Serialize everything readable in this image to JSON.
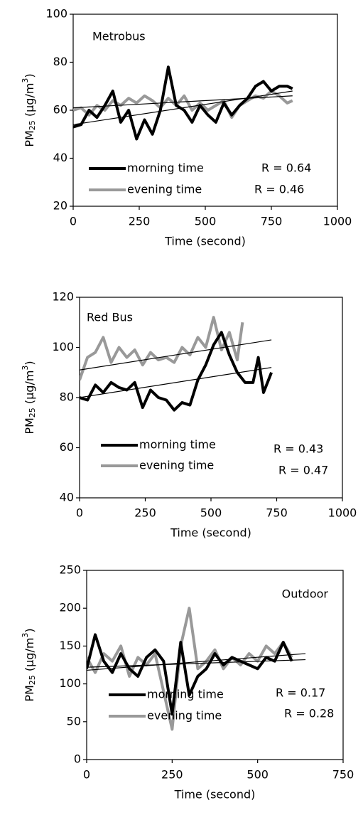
{
  "chart_data": [
    {
      "type": "line",
      "title": "Metrobus",
      "xlabel": "Time (second)",
      "ylabel_parts": [
        "PM",
        "25",
        " (µg/m",
        "3",
        ")"
      ],
      "xlim": [
        0,
        1000
      ],
      "ylim": [
        20,
        100
      ],
      "xticks": [
        0,
        250,
        500,
        750,
        1000
      ],
      "yticks": [
        20,
        40,
        60,
        80,
        100
      ],
      "series": [
        {
          "name": "morning time",
          "color": "#000000",
          "r_label": "R = 0.64",
          "x": [
            0,
            30,
            60,
            90,
            120,
            150,
            180,
            210,
            240,
            270,
            300,
            330,
            360,
            390,
            420,
            450,
            480,
            510,
            540,
            570,
            600,
            630,
            660,
            690,
            720,
            750,
            780,
            810,
            830
          ],
          "values": [
            53,
            54,
            60,
            57,
            62,
            68,
            55,
            60,
            48,
            56,
            50,
            60,
            78,
            62,
            60,
            55,
            62,
            58,
            55,
            63,
            58,
            62,
            65,
            70,
            72,
            68,
            70,
            70,
            69
          ],
          "trend": {
            "x": [
              0,
              830
            ],
            "values": [
              54,
              68
            ]
          }
        },
        {
          "name": "evening time",
          "color": "#999999",
          "r_label": "R = 0.46",
          "x": [
            0,
            30,
            60,
            90,
            120,
            150,
            180,
            210,
            240,
            270,
            300,
            330,
            360,
            390,
            420,
            450,
            480,
            510,
            540,
            570,
            600,
            630,
            660,
            690,
            720,
            750,
            780,
            810,
            830
          ],
          "values": [
            60,
            61,
            58,
            62,
            60,
            64,
            62,
            65,
            63,
            66,
            64,
            61,
            65,
            62,
            66,
            60,
            63,
            60,
            62,
            64,
            57,
            62,
            64,
            66,
            65,
            68,
            66,
            63,
            64
          ],
          "trend": {
            "x": [
              0,
              830
            ],
            "values": [
              61,
              66
            ]
          }
        }
      ]
    },
    {
      "type": "line",
      "title": "Red Bus",
      "xlabel": "Time (second)",
      "ylabel_parts": [
        "PM",
        "25",
        " (µg/m",
        "3",
        ")"
      ],
      "xlim": [
        0,
        1000
      ],
      "ylim": [
        40,
        120
      ],
      "xticks": [
        0,
        250,
        500,
        750,
        1000
      ],
      "yticks": [
        40,
        60,
        80,
        100,
        120
      ],
      "series": [
        {
          "name": "morning time",
          "color": "#000000",
          "r_label": "R = 0.43",
          "x": [
            0,
            30,
            60,
            90,
            120,
            150,
            180,
            210,
            240,
            270,
            300,
            330,
            360,
            390,
            420,
            450,
            480,
            510,
            540,
            570,
            600,
            630,
            660,
            680,
            700,
            730
          ],
          "values": [
            80,
            79,
            85,
            82,
            86,
            84,
            83,
            86,
            76,
            83,
            80,
            79,
            75,
            78,
            77,
            87,
            93,
            101,
            106,
            97,
            90,
            86,
            86,
            96,
            82,
            90
          ],
          "trend": {
            "x": [
              0,
              730
            ],
            "values": [
              80,
              92
            ]
          }
        },
        {
          "name": "evening time",
          "color": "#999999",
          "r_label": "R = 0.47",
          "x": [
            0,
            30,
            60,
            90,
            120,
            150,
            180,
            210,
            240,
            270,
            300,
            330,
            360,
            390,
            420,
            450,
            480,
            510,
            540,
            570,
            600,
            620
          ],
          "values": [
            87,
            96,
            98,
            104,
            94,
            100,
            96,
            99,
            93,
            98,
            95,
            96,
            94,
            100,
            97,
            104,
            100,
            112,
            99,
            106,
            95,
            110
          ],
          "trend": {
            "x": [
              0,
              730
            ],
            "values": [
              91,
              103
            ]
          }
        }
      ]
    },
    {
      "type": "line",
      "title": "Outdoor",
      "xlabel": "Time (second)",
      "ylabel_parts": [
        "PM",
        "25",
        " (µg/m",
        "3",
        ")"
      ],
      "xlim": [
        0,
        750
      ],
      "ylim": [
        0,
        250
      ],
      "xticks": [
        0,
        250,
        500,
        750
      ],
      "yticks": [
        0,
        50,
        100,
        150,
        200,
        250
      ],
      "series": [
        {
          "name": "morning time",
          "color": "#000000",
          "r_label": "R = 0.17",
          "x": [
            0,
            25,
            50,
            75,
            100,
            125,
            150,
            175,
            200,
            225,
            250,
            275,
            300,
            325,
            350,
            375,
            400,
            425,
            450,
            475,
            500,
            525,
            550,
            575,
            600
          ],
          "values": [
            120,
            165,
            130,
            115,
            140,
            120,
            110,
            135,
            145,
            130,
            60,
            155,
            85,
            110,
            120,
            140,
            125,
            135,
            130,
            125,
            120,
            135,
            130,
            155,
            130
          ],
          "trend": {
            "x": [
              0,
              640
            ],
            "values": [
              118,
              140
            ]
          }
        },
        {
          "name": "evening time",
          "color": "#999999",
          "r_label": "R = 0.28",
          "x": [
            0,
            25,
            50,
            75,
            100,
            125,
            150,
            175,
            200,
            225,
            250,
            275,
            300,
            325,
            350,
            375,
            400,
            425,
            450,
            475,
            500,
            525,
            550,
            575,
            600
          ],
          "values": [
            135,
            115,
            140,
            130,
            150,
            110,
            135,
            125,
            140,
            90,
            40,
            150,
            200,
            120,
            130,
            145,
            120,
            135,
            125,
            140,
            130,
            150,
            140,
            155,
            135
          ],
          "trend": {
            "x": [
              0,
              640
            ],
            "values": [
              122,
              132
            ]
          }
        }
      ]
    }
  ]
}
